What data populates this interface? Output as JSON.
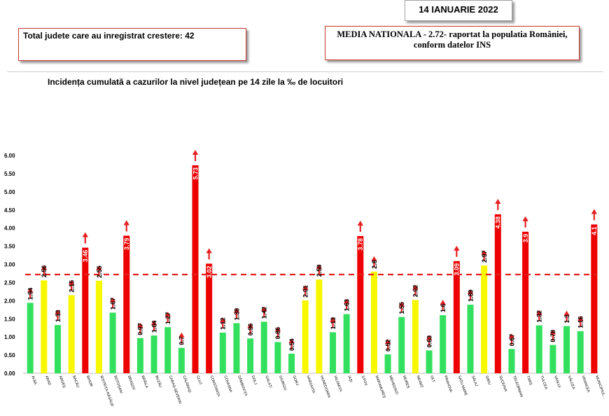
{
  "header": {
    "total_label": "Total judete care au inregistrat crestere: 42",
    "date_label": "14 IANUARIE 2022",
    "media_line1": "MEDIA NATIONALA - 2.72-  raportat la populatia României,",
    "media_line2": "conform datelor INS"
  },
  "colors": {
    "green": "#33e05e",
    "yellow": "#f7f700",
    "red": "#ec0000",
    "arrow": "#e52020",
    "average_line": "#e52020"
  },
  "chart_data": {
    "type": "bar",
    "title": "Incidența cumulată a cazurilor la nivel județean pe 14 zile la ‰ de locuitori",
    "ylim": [
      0,
      6.0
    ],
    "y_ticks": [
      "0.00",
      "0.50",
      "1.00",
      "1.50",
      "2.00",
      "2.50",
      "3.00",
      "3.50",
      "4.00",
      "4.50",
      "5.00",
      "5.50",
      "6.00"
    ],
    "average": 2.72,
    "categories": [
      "ALBA",
      "ARAD",
      "ARGEȘ",
      "BACĂU",
      "BIHOR",
      "BISTRIȚA-NĂSĂUD",
      "BOTOȘANI",
      "BRAȘOV",
      "BRĂILA",
      "BUZĂU",
      "CARAȘ-SEVERIN",
      "CĂLĂRAȘI",
      "CLUJ",
      "CONSTANȚA",
      "COVASNA",
      "DÂMBOVIȚA",
      "DOLJ",
      "GALAȚI",
      "GIURGIU",
      "GORJ",
      "HARGHITA",
      "HUNEDOARA",
      "IALOMIȚA",
      "IAȘI",
      "ILFOV",
      "MARAMUREȘ",
      "MEHEDINȚI",
      "MUREȘ",
      "NEAMȚ",
      "OLT",
      "PRAHOVA",
      "SATU MARE",
      "SĂLAJ",
      "SIBIU",
      "SUCEAVA",
      "TELEORMAN",
      "TIMIȘ",
      "TULCEA",
      "VASLUI",
      "VÂLCEA",
      "VRANCEA",
      "MUNICIPIUL..."
    ],
    "values": [
      1.94,
      2.56,
      1.33,
      2.15,
      3.46,
      2.55,
      1.67,
      3.79,
      0.97,
      1.04,
      1.27,
      0.7,
      5.73,
      3.02,
      1.12,
      1.38,
      0.96,
      1.42,
      0.86,
      0.54,
      2.01,
      2.58,
      1.13,
      1.63,
      3.78,
      2.8,
      0.52,
      1.55,
      2.02,
      0.63,
      1.6,
      3.09,
      1.89,
      2.97,
      4.38,
      0.67,
      3.9,
      1.32,
      0.78,
      1.3,
      1.16,
      4.1
    ],
    "value_labels": [
      "1.94",
      "2.56",
      "1.33",
      "2.15",
      "3.46",
      "2.55",
      "1.67",
      "3.79",
      "0.97",
      "1.04",
      "1.27",
      "0.7",
      "5.73",
      "3.02",
      "1.12",
      "1.38",
      "0.96",
      "1.42",
      "0.86",
      "0.54",
      "2.01",
      "2.58",
      "1.13",
      "1.63",
      "3.78",
      "2.8",
      "0.52",
      "1.55",
      "2.02",
      "0.63",
      "1.6",
      "3.09",
      "1.89",
      "2.97",
      "4.38",
      "0.67",
      "3.9",
      "1.32",
      "0.78",
      "1.3",
      "1.16",
      "4.1"
    ],
    "bar_colors": [
      "green",
      "yellow",
      "green",
      "yellow",
      "red",
      "yellow",
      "green",
      "red",
      "green",
      "green",
      "green",
      "green",
      "red",
      "red",
      "green",
      "green",
      "green",
      "green",
      "green",
      "green",
      "yellow",
      "yellow",
      "green",
      "green",
      "red",
      "yellow",
      "green",
      "green",
      "yellow",
      "green",
      "green",
      "red",
      "green",
      "yellow",
      "red",
      "green",
      "red",
      "green",
      "green",
      "green",
      "green",
      "red"
    ],
    "trend": "increase"
  }
}
